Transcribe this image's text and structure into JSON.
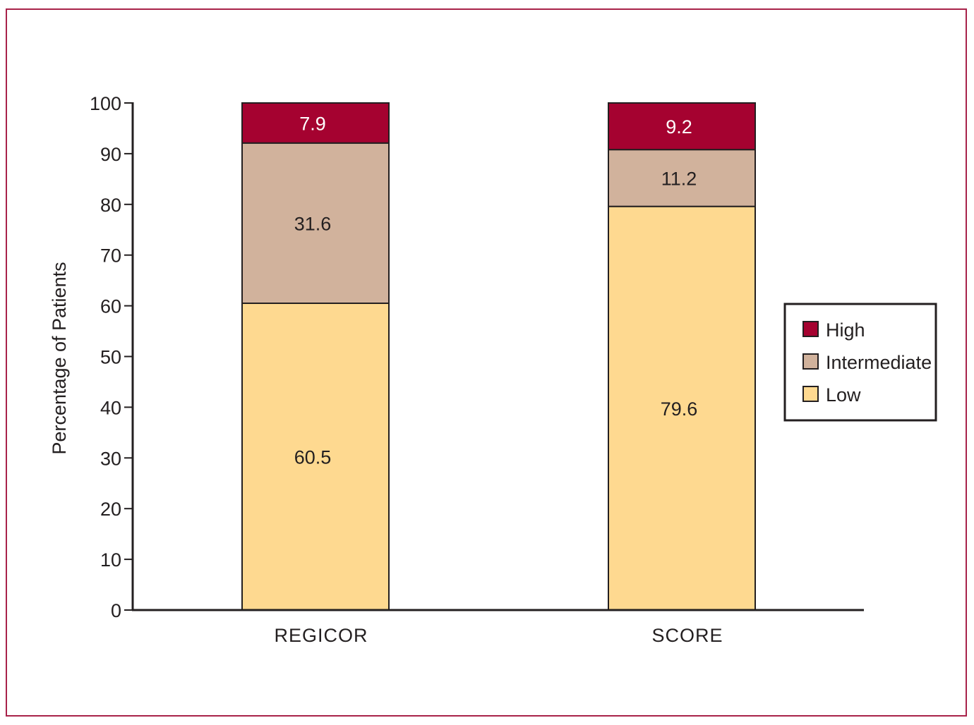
{
  "chart_data": {
    "type": "bar",
    "stacked": true,
    "categories": [
      "REGICOR",
      "SCORE"
    ],
    "series": [
      {
        "name": "Low",
        "values": [
          60.5,
          79.6
        ],
        "color": "#fed990"
      },
      {
        "name": "Intermediate",
        "values": [
          31.6,
          11.2
        ],
        "color": "#d1b29c"
      },
      {
        "name": "High",
        "values": [
          7.9,
          9.2
        ],
        "color": "#a50230"
      }
    ],
    "value_labels": [
      [
        "60.5",
        "79.6"
      ],
      [
        "31.6",
        "11.2"
      ],
      [
        "7.9",
        "9.2"
      ]
    ],
    "title": "",
    "xlabel": "",
    "ylabel": "Percentage of Patients",
    "ylim": [
      0,
      100
    ],
    "yticks": [
      0,
      10,
      20,
      30,
      40,
      50,
      60,
      70,
      80,
      90,
      100
    ],
    "grid": false,
    "legend": {
      "position": "right",
      "entries": [
        "High",
        "Intermediate",
        "Low"
      ]
    },
    "frame_color": "#a8224a"
  }
}
